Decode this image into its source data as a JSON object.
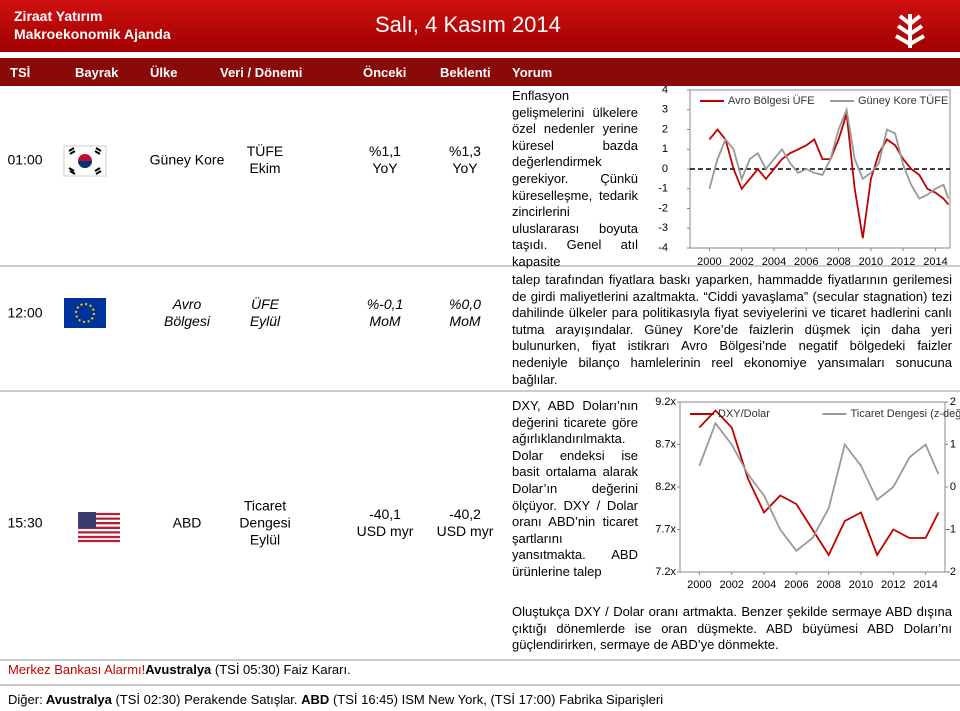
{
  "header": {
    "brand": [
      "Ziraat Yatırım",
      "Makroekonomik Ajanda"
    ],
    "date": "Salı, 4 Kasım 2014"
  },
  "table": {
    "columns": [
      "TSİ",
      "Bayrak",
      "Ülke",
      "Veri / Dönemi",
      "Önceki",
      "Beklenti",
      "Yorum"
    ],
    "rows": [
      {
        "time": "01:00",
        "country": [
          "Güney Kore"
        ],
        "data": [
          "TÜFE",
          "Ekim"
        ],
        "previous": [
          "%1,1",
          "YoY"
        ],
        "expected": [
          "%1,3",
          "YoY"
        ],
        "comment": {
          "side": "Enflasyon gelişmelerini ülkelere özel nedenler yerine küresel bazda değerlendirmek gerekiyor. Çünkü küreselleşme, tedarik zincirlerini uluslararası boyuta taşıdı. Genel atıl kapasite",
          "below": "talep tarafından fiyatlara baskı yaparken, hammadde fiyatlarının gerilemesi de girdi maliyetlerini azaltmakta. “Ciddi yavaşlama” (secular stagnation) tezi dahilinde ülkeler para politikasıyla fiyat seviyelerini ve ticaret hadlerini canlı tutma arayışındalar. Güney Kore’de faizlerin düşmek için daha yeri bulunurken, fiyat istikrarı Avro Bölgesi’nde negatif bölgedeki faizler nedeniyle bilanço hamlelerinin reel ekonomiye yansımaları sonucuna bağlılar."
        }
      },
      {
        "time": "12:00",
        "country": [
          "Avro",
          "Bölgesi"
        ],
        "data": [
          "ÜFE",
          "Eylül"
        ],
        "previous": [
          "%-0,1",
          "MoM"
        ],
        "expected": [
          "%0,0",
          "MoM"
        ]
      },
      {
        "time": "15:30",
        "country": [
          "ABD"
        ],
        "data": [
          "Ticaret",
          "Dengesi",
          "Eylül"
        ],
        "previous": [
          "-40,1",
          "USD myr"
        ],
        "expected": [
          "-40,2",
          "USD myr"
        ],
        "comment": {
          "side": "DXY, ABD Doları’nın değerini ticarete göre ağırlıklandırılmakta. Dolar endeksi ise basit ortalama alarak Dolar’ın değerini ölçüyor. DXY / Dolar oranı ABD’nin ticaret şartlarını yansıtmakta. ABD ürünlerine talep",
          "below": "Oluştukça DXY / Dolar oranı artmakta. Benzer şekilde sermaye ABD dışına çıktığı dönemlerde ise oran düşmekte. ABD büyümesi ABD Doları’nı güçlendirirken, sermaye de ABD’ye dönmekte."
        }
      }
    ]
  },
  "chart_data": [
    {
      "type": "line",
      "xlim": [
        1998.8,
        2014.9
      ],
      "xticks": [
        2000,
        2002,
        2004,
        2006,
        2008,
        2010,
        2012,
        2014
      ],
      "ylim": [
        -4,
        4
      ],
      "yticks": [
        4,
        3,
        2,
        1,
        0,
        -1,
        -2,
        -3,
        -4
      ],
      "x": [
        2000,
        2000.5,
        2001,
        2001.5,
        2002,
        2002.5,
        2003,
        2003.5,
        2004,
        2004.5,
        2005,
        2005.5,
        2006,
        2006.5,
        2007,
        2007.5,
        2008,
        2008.5,
        2009,
        2009.5,
        2010,
        2010.5,
        2011,
        2011.5,
        2012,
        2012.5,
        2013,
        2013.5,
        2014,
        2014.5,
        2014.8
      ],
      "series": [
        {
          "name": "Avro Bölgesi ÜFE",
          "color": "#c00000",
          "values": [
            1.5,
            2,
            1.5,
            0,
            -1,
            -0.5,
            0,
            -0.5,
            0,
            0.5,
            0.8,
            1,
            1.2,
            1.5,
            0.5,
            0.5,
            1.5,
            2.8,
            -1,
            -3.5,
            -0.5,
            0.8,
            1.5,
            1.2,
            0.5,
            0,
            -0.3,
            -1,
            -1.2,
            -1.5,
            -1.8
          ]
        },
        {
          "name": "Güney Kore TÜFE",
          "color": "#999999",
          "values": [
            -1,
            0.5,
            1.5,
            1,
            -0.5,
            0.5,
            0.8,
            0,
            0.5,
            1,
            0.3,
            -0.2,
            0,
            -0.2,
            -0.3,
            0.5,
            2,
            3,
            0.5,
            -0.5,
            -0.2,
            0.3,
            2,
            1.8,
            0.2,
            -0.8,
            -1.5,
            -1.3,
            -1,
            -0.8,
            -1.5
          ]
        }
      ]
    },
    {
      "type": "line",
      "xlim": [
        1998.8,
        2015.2
      ],
      "xticks": [
        2000,
        2002,
        2004,
        2006,
        2008,
        2010,
        2012,
        2014
      ],
      "ylim": [
        7.2,
        9.2
      ],
      "yticks": [
        {
          "value": 9.2,
          "label": "9.2x"
        },
        {
          "value": 8.7,
          "label": "8.7x"
        },
        {
          "value": 8.2,
          "label": "8.2x"
        },
        {
          "value": 7.7,
          "label": "7.7x"
        },
        {
          "value": 7.2,
          "label": "7.2x"
        }
      ],
      "y2lim": [
        -2,
        2
      ],
      "y2ticks": [
        2,
        1,
        0,
        -1,
        -2
      ],
      "x": [
        2000,
        2001,
        2002,
        2003,
        2004,
        2005,
        2006,
        2007,
        2008,
        2009,
        2010,
        2011,
        2012,
        2013,
        2014,
        2014.8
      ],
      "series": [
        {
          "name": "DXY/Dolar",
          "color": "#c00000",
          "values": [
            8.9,
            9.1,
            8.9,
            8.3,
            7.9,
            8.1,
            8.0,
            7.7,
            7.4,
            7.8,
            7.9,
            7.4,
            7.7,
            7.6,
            7.6,
            7.9
          ]
        },
        {
          "name": "Ticaret Dengesi (z-değeri)",
          "color": "#999999",
          "axis": "y2",
          "values": [
            0.5,
            1.5,
            1,
            0.3,
            -0.2,
            -1,
            -1.5,
            -1.2,
            -0.5,
            1,
            0.5,
            -0.3,
            0,
            0.7,
            1,
            0.3
          ]
        }
      ]
    }
  ],
  "footer": {
    "alarm": {
      "label": "Merkez Bankası Alarmı!",
      "segments": [
        {
          "text": "Avustralya",
          "bold": true
        },
        {
          "text": " (TSİ 05:30) Faiz Kararı.",
          "bold": false
        }
      ]
    },
    "other": [
      {
        "text": "Diğer:",
        "bold": false
      },
      {
        "text": " Avustralya",
        "bold": true
      },
      {
        "text": " (TSİ 02:30) Perakende Satışlar. ",
        "bold": false
      },
      {
        "text": "ABD",
        "bold": true
      },
      {
        "text": " (TSİ 16:45) ISM New York, (TSİ 17:00) Fabrika Siparişleri",
        "bold": false
      }
    ]
  }
}
